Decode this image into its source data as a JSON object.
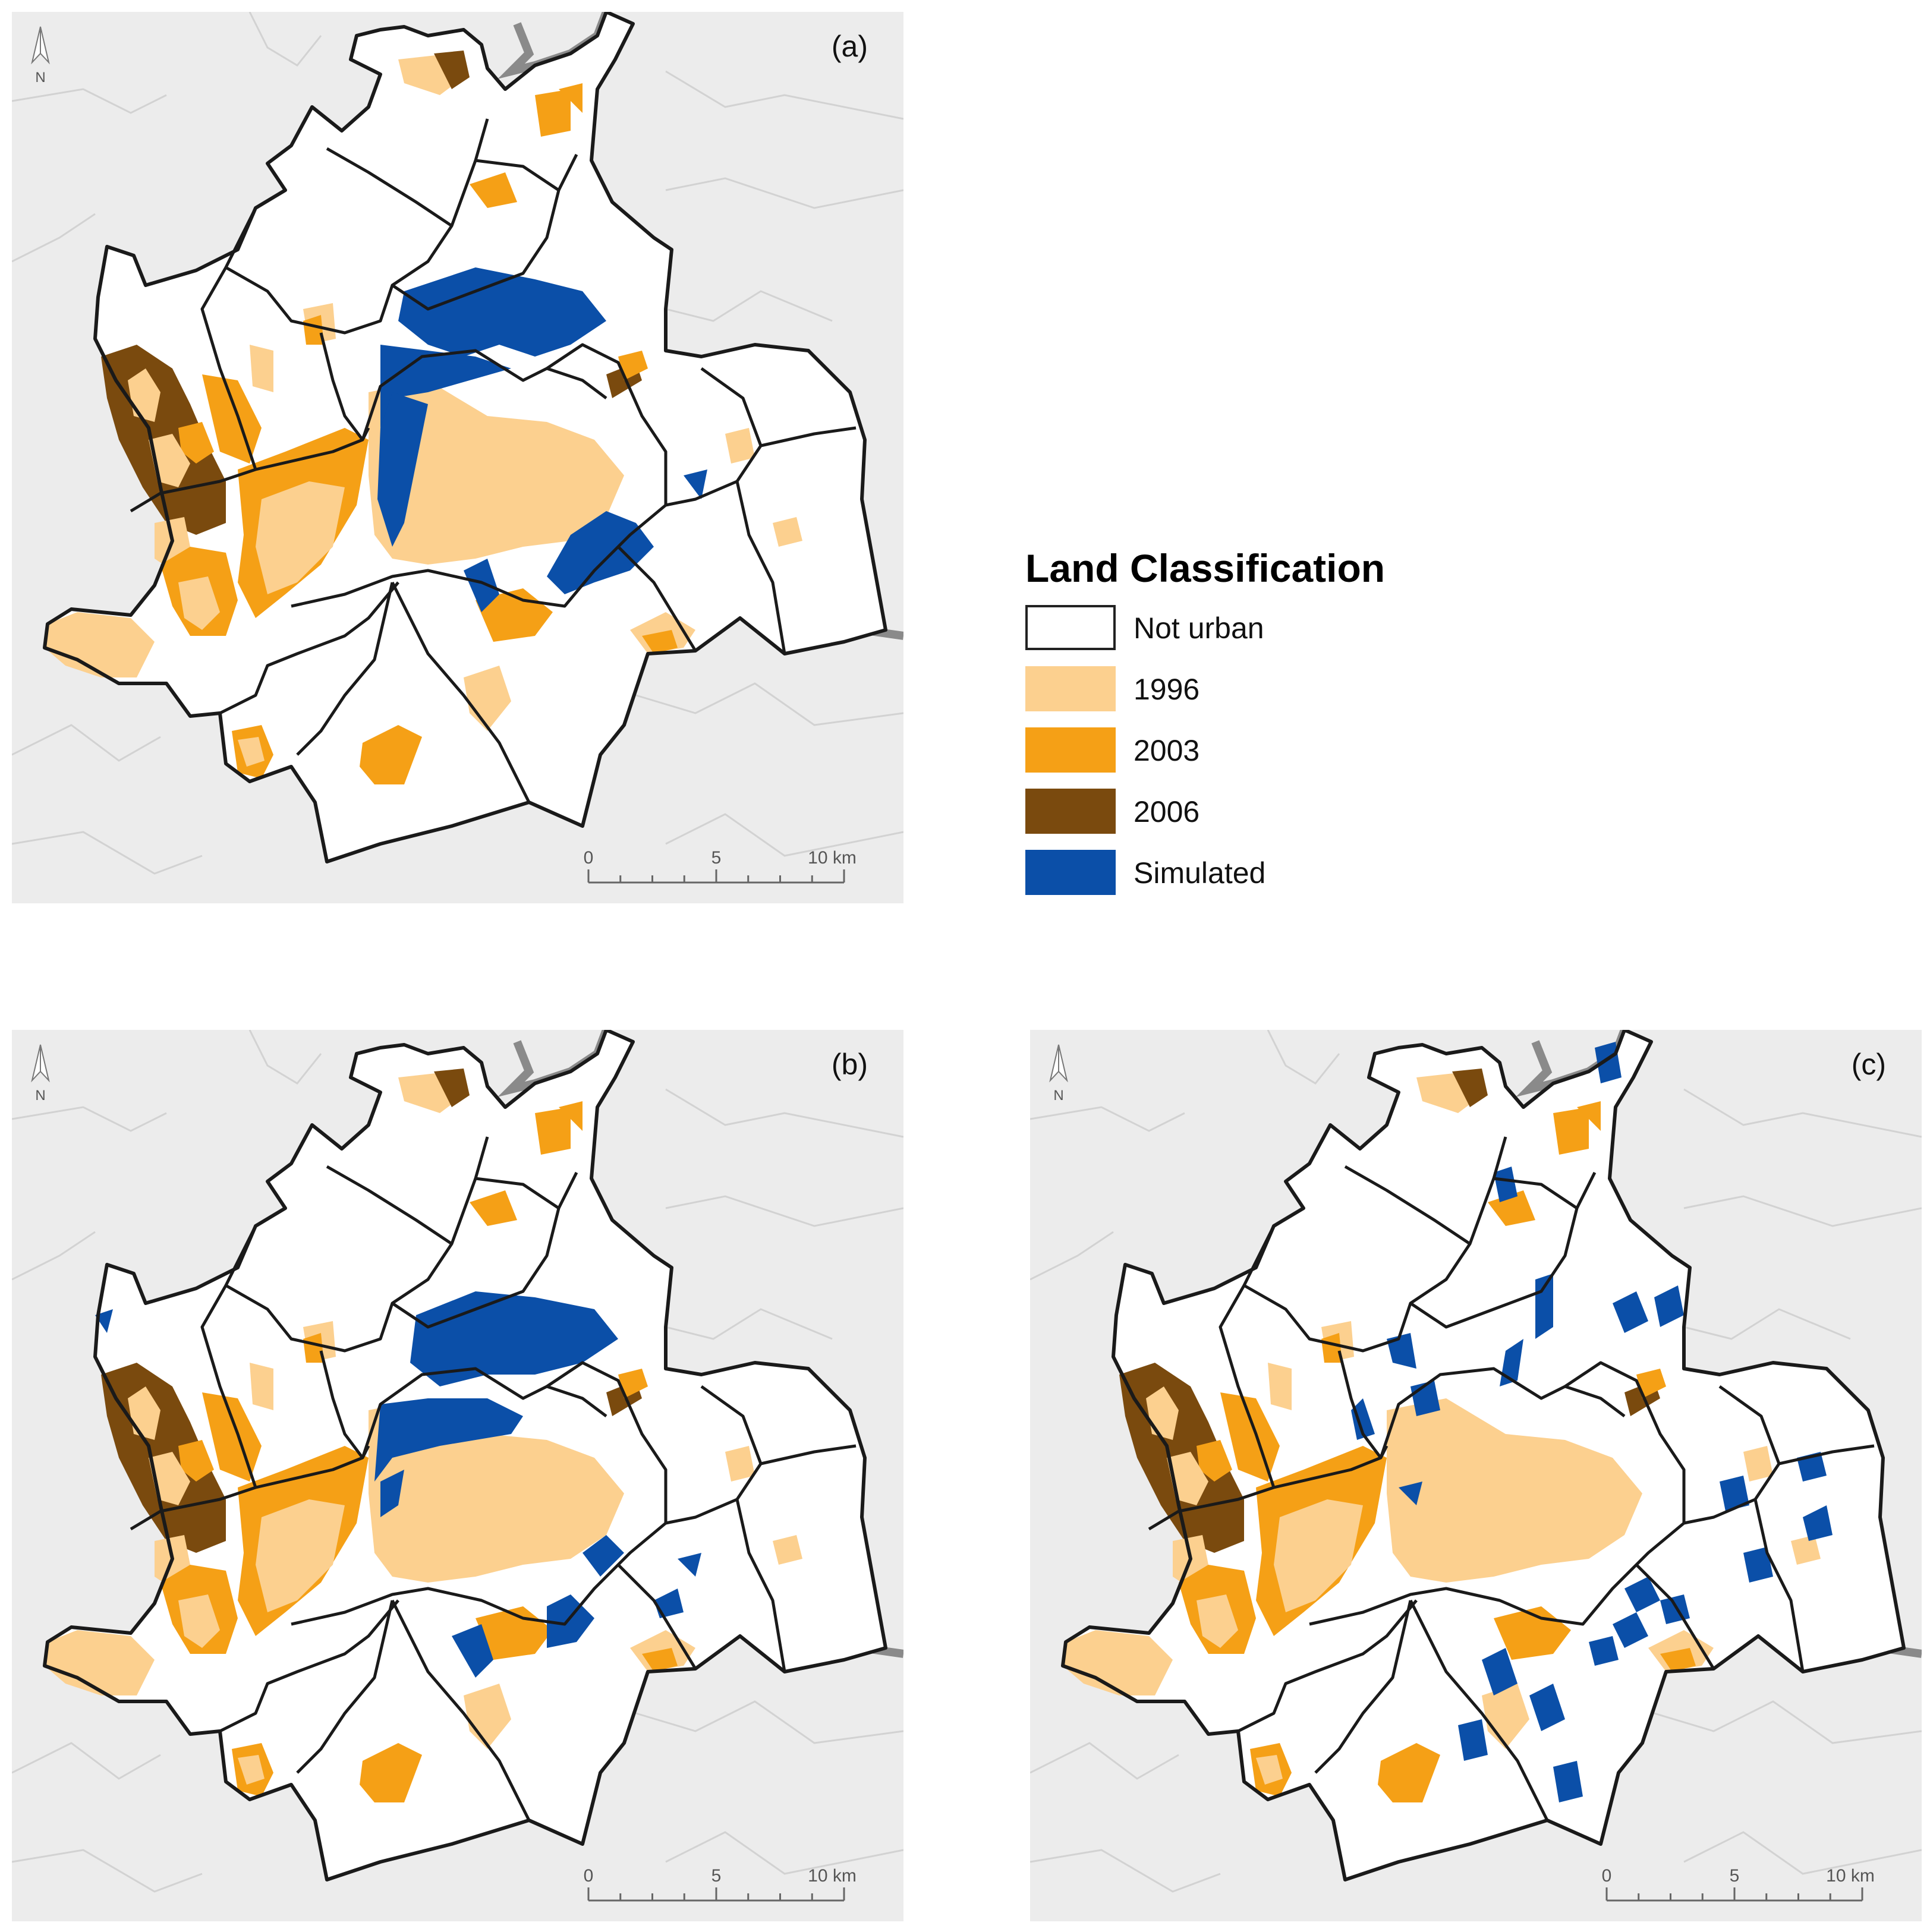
{
  "panels": {
    "a": {
      "label": "(a)",
      "north": "N",
      "scale": {
        "ticks": [
          "0",
          "5",
          "10 km"
        ]
      }
    },
    "b": {
      "label": "(b)",
      "north": "N",
      "scale": {
        "ticks": [
          "0",
          "5",
          "10 km"
        ]
      }
    },
    "c": {
      "label": "(c)",
      "north": "N",
      "scale": {
        "ticks": [
          "0",
          "5",
          "10 km"
        ]
      }
    }
  },
  "legend": {
    "title": "Land Classification",
    "items": [
      {
        "label": "Not urban",
        "color": "#ffffff"
      },
      {
        "label": "1996",
        "color": "#fcd08f"
      },
      {
        "label": "2003",
        "color": "#f5a016"
      },
      {
        "label": "2006",
        "color": "#7a4a0e"
      },
      {
        "label": "Simulated",
        "color": "#0b4fa8"
      }
    ]
  },
  "colors": {
    "background": "#ececec",
    "boundary": "#1a1a1a",
    "not_urban": "#ffffff",
    "y1996": "#fcd08f",
    "y2003": "#f5a016",
    "y2006": "#7a4a0e",
    "simulated": "#0b4fa8"
  }
}
